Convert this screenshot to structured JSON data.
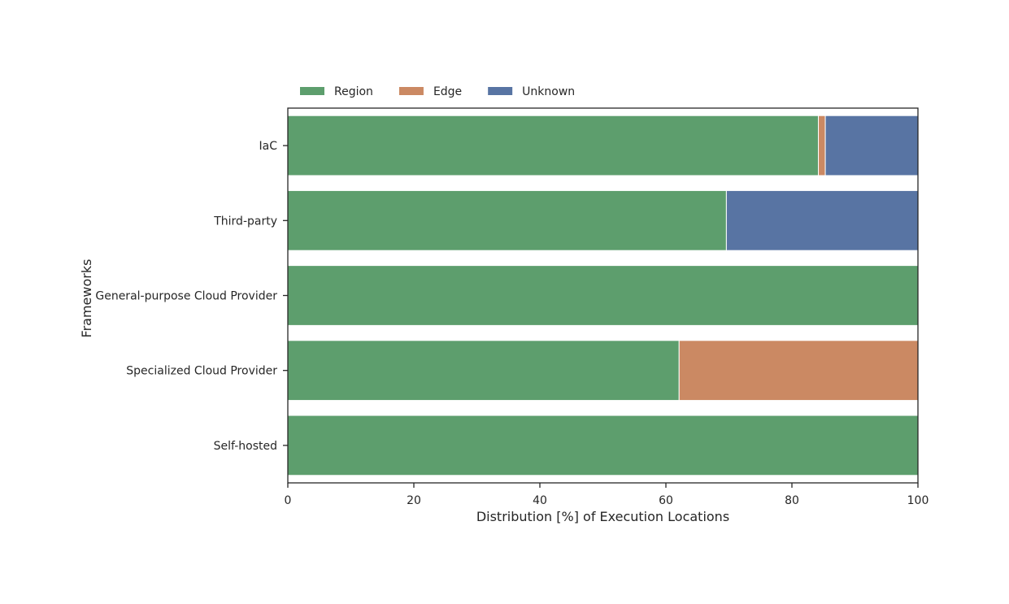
{
  "chart_data": {
    "type": "bar",
    "orientation": "horizontal",
    "stacked": true,
    "categories": [
      "IaC",
      "Third-party",
      "General-purpose Cloud Provider",
      "Specialized Cloud Provider",
      "Self-hosted"
    ],
    "series": [
      {
        "name": "Region",
        "color": "#5d9e6d",
        "values": [
          84.2,
          69.6,
          100,
          62.1,
          100
        ]
      },
      {
        "name": "Edge",
        "color": "#cb8963",
        "values": [
          1.1,
          0,
          0,
          37.9,
          0
        ]
      },
      {
        "name": "Unknown",
        "color": "#5874a3",
        "values": [
          14.7,
          30.4,
          0,
          0,
          0
        ]
      }
    ],
    "xlabel": "Distribution [%] of Execution Locations",
    "ylabel": "Frameworks",
    "xlim": [
      0,
      100
    ],
    "xticks": [
      0,
      20,
      40,
      60,
      80,
      100
    ],
    "grid": false,
    "legend_position": "top-left"
  }
}
